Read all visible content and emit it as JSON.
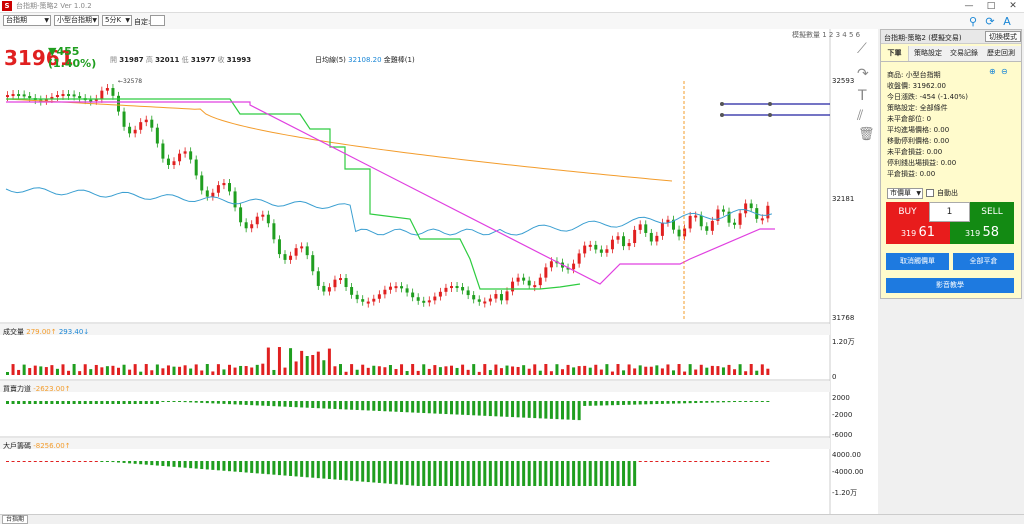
{
  "window": {
    "title": "台指期-策略2 Ver 1.0.2",
    "icon_label": "S",
    "minimize": "—",
    "maximize": "□",
    "close": "✕"
  },
  "toolbar": {
    "symbol": "台指期",
    "product": "小型台指期",
    "interval": "5分K",
    "custom_label": "自定:",
    "custom_value": ""
  },
  "chart": {
    "layout_label": "模擬數量",
    "layout_nums": "1 2 3 4 5 6",
    "price": "31961",
    "change": "▼455",
    "change_pct": "(1.40%)",
    "ohlc": {
      "open_label": "開",
      "open": "31987",
      "high_label": "高",
      "high": "32011",
      "low_label": "低",
      "low": "31977",
      "close_label": "收",
      "close": "31993"
    },
    "ma_label": "日均線(5)",
    "ma_value": "32108.20",
    "golden_label": "金雞棒(1)",
    "high_marker": "←32578",
    "y_ticks": [
      "32593",
      "32181",
      "31768"
    ],
    "volume": {
      "label": "成交量",
      "v1": "279.00↑",
      "v2": "293.40↓",
      "ticks": [
        "1.20万",
        "0"
      ]
    },
    "force": {
      "label": "買賣力道",
      "value": "-2623.00↑",
      "ticks": [
        "2000",
        "-2000",
        "-6000"
      ]
    },
    "big": {
      "label": "大戶籌碼",
      "value": "-8256.00↑",
      "ticks": [
        "4000.00",
        "-4000.00",
        "-1.20万"
      ]
    }
  },
  "chart_data": [
    {
      "type": "candlestick",
      "title": "",
      "yaxis_ticks": [
        32593,
        32181,
        31768
      ],
      "ohlc_last": {
        "open": 31987,
        "high": 32011,
        "low": 31977,
        "close": 31993
      },
      "price": 31961,
      "change": -455,
      "change_pct": -1.4,
      "series": [
        {
          "name": "日均線(5)",
          "value": 32108.2,
          "color": "#f39c2b"
        },
        {
          "name": "金雞棒(1)",
          "color": "#2ecc40"
        }
      ]
    },
    {
      "type": "bar",
      "title": "成交量",
      "ylim": [
        0,
        12000
      ],
      "series": [
        {
          "name": "成交量",
          "values": [
            279.0,
            293.4
          ]
        }
      ]
    },
    {
      "type": "bar",
      "title": "買賣力道",
      "ylim": [
        -6000,
        2000
      ],
      "series": [
        {
          "name": "買賣力道",
          "values": [
            -2623.0
          ]
        }
      ]
    },
    {
      "type": "bar",
      "title": "大戶籌碼",
      "ylim": [
        -12000,
        4000
      ],
      "series": [
        {
          "name": "大戶籌碼",
          "values": [
            -8256.0
          ]
        }
      ]
    }
  ],
  "sidepanel": {
    "title": "台指期-策略2 (模擬交易)",
    "switch": "切換模式",
    "tabs": [
      "下單",
      "策略設定",
      "交易記錄",
      "歷史回測"
    ],
    "info": [
      "商品: 小型台指期",
      "收盤價: 31962.00",
      "今日漲跌: -454 (-1.40%)",
      "策略設定: 全部條件",
      "未平倉部位: 0",
      "平均進場價格: 0.00",
      "移動停利價格: 0.00",
      "未平倉損益: 0.00",
      "停利錢出場損益: 0.00",
      "平倉損益: 0.00"
    ],
    "order_type": "市價單",
    "auto_label": "自動出",
    "buy": "BUY",
    "sell": "SELL",
    "qty": "1",
    "bid_a": "319",
    "bid_b": "61",
    "ask_a": "319",
    "ask_b": "58",
    "cancel_btn": "取消觸價單",
    "close_all_btn": "全部平倉",
    "video_btn": "影音教學"
  },
  "statusbar": {
    "tab": "台指期"
  },
  "colors": {
    "up": "#e02020",
    "down": "#1f9e1f",
    "ma": "#f39c2b",
    "gold": "#2ecc40",
    "blue": "#3b9fd1",
    "pink": "#e040e0",
    "buy": "#e81c1c",
    "sell": "#138a13",
    "btn": "#1e7ae0"
  }
}
